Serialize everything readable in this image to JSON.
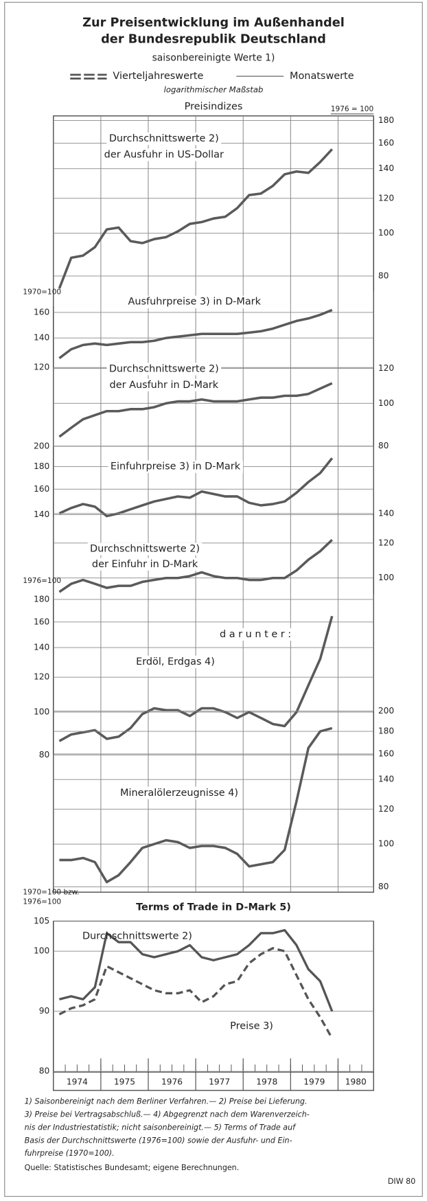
{
  "header": {
    "title": [
      "Zur Preisentwicklung im Außenhandel",
      "der Bundesrepublik Deutschland"
    ],
    "subtitle": "saisonbereinigte Werte 1)",
    "legend_quarterly": "Vierteljahreswerte",
    "legend_monthly": "Monatswerte",
    "scale_note": "logarithmischer Maßstab",
    "section": "Preisindizes"
  },
  "chart_data": [
    {
      "type": "line",
      "title": [
        "Durchschnittswerte 2)",
        "der Ausfuhr in US-Dollar"
      ],
      "log_scale": true,
      "yaxis": "right",
      "base_label": "1976 = 100",
      "color": "#5a5a5a",
      "ylim": [
        74,
        182
      ],
      "yticks": [
        80,
        100,
        120,
        140,
        160,
        180
      ],
      "x": [
        1974.125,
        1974.375,
        1974.625,
        1974.875,
        1975.125,
        1975.375,
        1975.625,
        1975.875,
        1976.125,
        1976.375,
        1976.625,
        1976.875,
        1977.125,
        1977.375,
        1977.625,
        1977.875,
        1978.125,
        1978.375,
        1978.625,
        1978.875,
        1979.125,
        1979.375,
        1979.625,
        1979.875
      ],
      "values": [
        75,
        88,
        89,
        93,
        102,
        103,
        96,
        95,
        97,
        98,
        101,
        105,
        106,
        108,
        109,
        114,
        122,
        123,
        128,
        136,
        138,
        137,
        145,
        155
      ]
    },
    {
      "type": "line",
      "title": [
        "Ausfuhrpreise 3) in D-Mark"
      ],
      "log_scale": true,
      "yaxis": "left",
      "base_label": "1970=100",
      "color": "#5a5a5a",
      "ylim": [
        120,
        165
      ],
      "yticks": [
        120,
        140,
        160
      ],
      "x": [
        1974.125,
        1974.375,
        1974.625,
        1974.875,
        1975.125,
        1975.375,
        1975.625,
        1975.875,
        1976.125,
        1976.375,
        1976.625,
        1976.875,
        1977.125,
        1977.375,
        1977.625,
        1977.875,
        1978.125,
        1978.375,
        1978.625,
        1978.875,
        1979.125,
        1979.375,
        1979.625,
        1979.875
      ],
      "values": [
        126,
        132,
        135,
        136,
        135,
        136,
        137,
        137,
        138,
        140,
        141,
        142,
        143,
        143,
        143,
        143,
        144,
        145,
        147,
        150,
        153,
        155,
        158,
        162
      ]
    },
    {
      "type": "line",
      "title": [
        "Durchschnittswerte 2)",
        "der Ausfuhr in D-Mark"
      ],
      "log_scale": true,
      "yaxis": "right",
      "color": "#5a5a5a",
      "ylim": [
        80,
        120
      ],
      "yticks": [
        80,
        100,
        120
      ],
      "x": [
        1974.125,
        1974.375,
        1974.625,
        1974.875,
        1975.125,
        1975.375,
        1975.625,
        1975.875,
        1976.125,
        1976.375,
        1976.625,
        1976.875,
        1977.125,
        1977.375,
        1977.625,
        1977.875,
        1978.125,
        1978.375,
        1978.625,
        1978.875,
        1979.125,
        1979.375,
        1979.625,
        1979.875
      ],
      "values": [
        84,
        88,
        92,
        94,
        96,
        96,
        97,
        97,
        98,
        100,
        101,
        101,
        102,
        101,
        101,
        101,
        102,
        103,
        103,
        104,
        104,
        105,
        108,
        111
      ]
    },
    {
      "type": "line",
      "title": [
        "Einfuhrpreise 3) in D-Mark"
      ],
      "log_scale": true,
      "yaxis": "left",
      "color": "#5a5a5a",
      "ylim": [
        138,
        200
      ],
      "yticks": [
        140,
        160,
        180,
        200
      ],
      "x": [
        1974.125,
        1974.375,
        1974.625,
        1974.875,
        1975.125,
        1975.375,
        1975.625,
        1975.875,
        1976.125,
        1976.375,
        1976.625,
        1976.875,
        1977.125,
        1977.375,
        1977.625,
        1977.875,
        1978.125,
        1978.375,
        1978.625,
        1978.875,
        1979.125,
        1979.375,
        1979.625,
        1979.875
      ],
      "values": [
        141,
        145,
        148,
        146,
        139,
        141,
        144,
        147,
        150,
        152,
        154,
        153,
        158,
        156,
        154,
        154,
        149,
        147,
        148,
        150,
        157,
        166,
        174,
        188
      ]
    },
    {
      "type": "line",
      "title": [
        "Durchschnittswerte 2)",
        "der Einfuhr in D-Mark"
      ],
      "log_scale": true,
      "yaxis": "right",
      "color": "#5a5a5a",
      "ylim": [
        92,
        140
      ],
      "yticks": [
        100,
        120,
        140
      ],
      "x": [
        1974.125,
        1974.375,
        1974.625,
        1974.875,
        1975.125,
        1975.375,
        1975.625,
        1975.875,
        1976.125,
        1976.375,
        1976.625,
        1976.875,
        1977.125,
        1977.375,
        1977.625,
        1977.875,
        1978.125,
        1978.375,
        1978.625,
        1978.875,
        1979.125,
        1979.375,
        1979.625,
        1979.875
      ],
      "values": [
        93,
        97,
        99,
        97,
        95,
        96,
        96,
        98,
        99,
        100,
        100,
        101,
        103,
        101,
        100,
        100,
        99,
        99,
        100,
        100,
        104,
        110,
        115,
        122
      ]
    },
    {
      "type": "line",
      "title": [
        "Erdöl, Erdgas 4)"
      ],
      "annotation": "d a r u n t e r :",
      "log_scale": true,
      "yaxis": "left",
      "base_label": "1976=100",
      "color": "#5a5a5a",
      "ylim": [
        80,
        180
      ],
      "yticks": [
        80,
        100,
        120,
        140,
        160,
        180
      ],
      "x": [
        1974.125,
        1974.375,
        1974.625,
        1974.875,
        1975.125,
        1975.375,
        1975.625,
        1975.875,
        1976.125,
        1976.375,
        1976.625,
        1976.875,
        1977.125,
        1977.375,
        1977.625,
        1977.875,
        1978.125,
        1978.375,
        1978.625,
        1978.875,
        1979.125,
        1979.375,
        1979.625,
        1979.875
      ],
      "values": [
        86,
        89,
        90,
        91,
        87,
        88,
        92,
        99,
        102,
        101,
        101,
        98,
        102,
        102,
        100,
        97,
        100,
        97,
        94,
        93,
        100,
        115,
        132,
        165
      ]
    },
    {
      "type": "line",
      "title": [
        "Mineralölerzeugnisse 4)"
      ],
      "log_scale": true,
      "yaxis": "right",
      "color": "#5a5a5a",
      "ylim": [
        80,
        200
      ],
      "yticks": [
        80,
        100,
        120,
        140,
        160,
        180,
        200
      ],
      "x": [
        1974.125,
        1974.375,
        1974.625,
        1974.875,
        1975.125,
        1975.375,
        1975.625,
        1975.875,
        1976.125,
        1976.375,
        1976.625,
        1976.875,
        1977.125,
        1977.375,
        1977.625,
        1977.875,
        1978.125,
        1978.375,
        1978.625,
        1978.875,
        1979.125,
        1979.375,
        1979.625,
        1979.875
      ],
      "values": [
        92,
        92,
        93,
        91,
        82,
        85,
        91,
        98,
        100,
        102,
        101,
        98,
        99,
        99,
        98,
        95,
        89,
        90,
        91,
        97,
        125,
        165,
        180,
        183
      ]
    },
    {
      "type": "line",
      "title": [
        "Terms of Trade in D-Mark 5)"
      ],
      "log_scale": false,
      "yaxis": "left",
      "base_label": [
        "1970=100 bzw.",
        "1976=100"
      ],
      "categories": [
        "1974",
        "1975",
        "1976",
        "1977",
        "1978",
        "1979",
        "1980"
      ],
      "xlim": [
        1974,
        1980.75
      ],
      "ylim": [
        80,
        105
      ],
      "yticks": [
        80,
        90,
        100,
        105
      ],
      "x": [
        1974.125,
        1974.375,
        1974.625,
        1974.875,
        1975.125,
        1975.375,
        1975.625,
        1975.875,
        1976.125,
        1976.375,
        1976.625,
        1976.875,
        1977.125,
        1977.375,
        1977.625,
        1977.875,
        1978.125,
        1978.375,
        1978.625,
        1978.875,
        1979.125,
        1979.375,
        1979.625,
        1979.875
      ],
      "series": [
        {
          "name": "Durchschnittswerte 2)",
          "color": "#555555",
          "dashed": false,
          "values": [
            92,
            92.5,
            92,
            94,
            103,
            101.5,
            101.5,
            99.5,
            99,
            99.5,
            100,
            101,
            99,
            98.5,
            99,
            99.5,
            101,
            103,
            103,
            103.5,
            101,
            97,
            95,
            90
          ]
        },
        {
          "name": "Preise 3)",
          "color": "#555555",
          "dashed": true,
          "values": [
            89.5,
            90.5,
            91,
            92,
            97.5,
            96.5,
            95.5,
            94.5,
            93.5,
            93,
            93,
            93.5,
            91.5,
            92.5,
            94.5,
            95,
            98,
            99.5,
            100.5,
            100,
            96,
            92,
            89,
            85.5
          ]
        }
      ]
    }
  ],
  "footnotes": [
    "1) Saisonbereinigt nach dem Berliner Verfahren.— 2) Preise bei Lieferung.",
    "3) Preise bei Vertragsabschluß.— 4) Abgegrenzt nach dem Warenverzeich-",
    "nis der Industriestatistik; nicht saisonbereinigt.— 5) Terms of Trade auf",
    "Basis der Durchschnittswerte (1976=100) sowie der Ausfuhr- und Ein-",
    "fuhrpreise (1970=100)."
  ],
  "source": "Quelle: Statistisches Bundesamt; eigene Berechnungen.",
  "credit": "DIW 80"
}
